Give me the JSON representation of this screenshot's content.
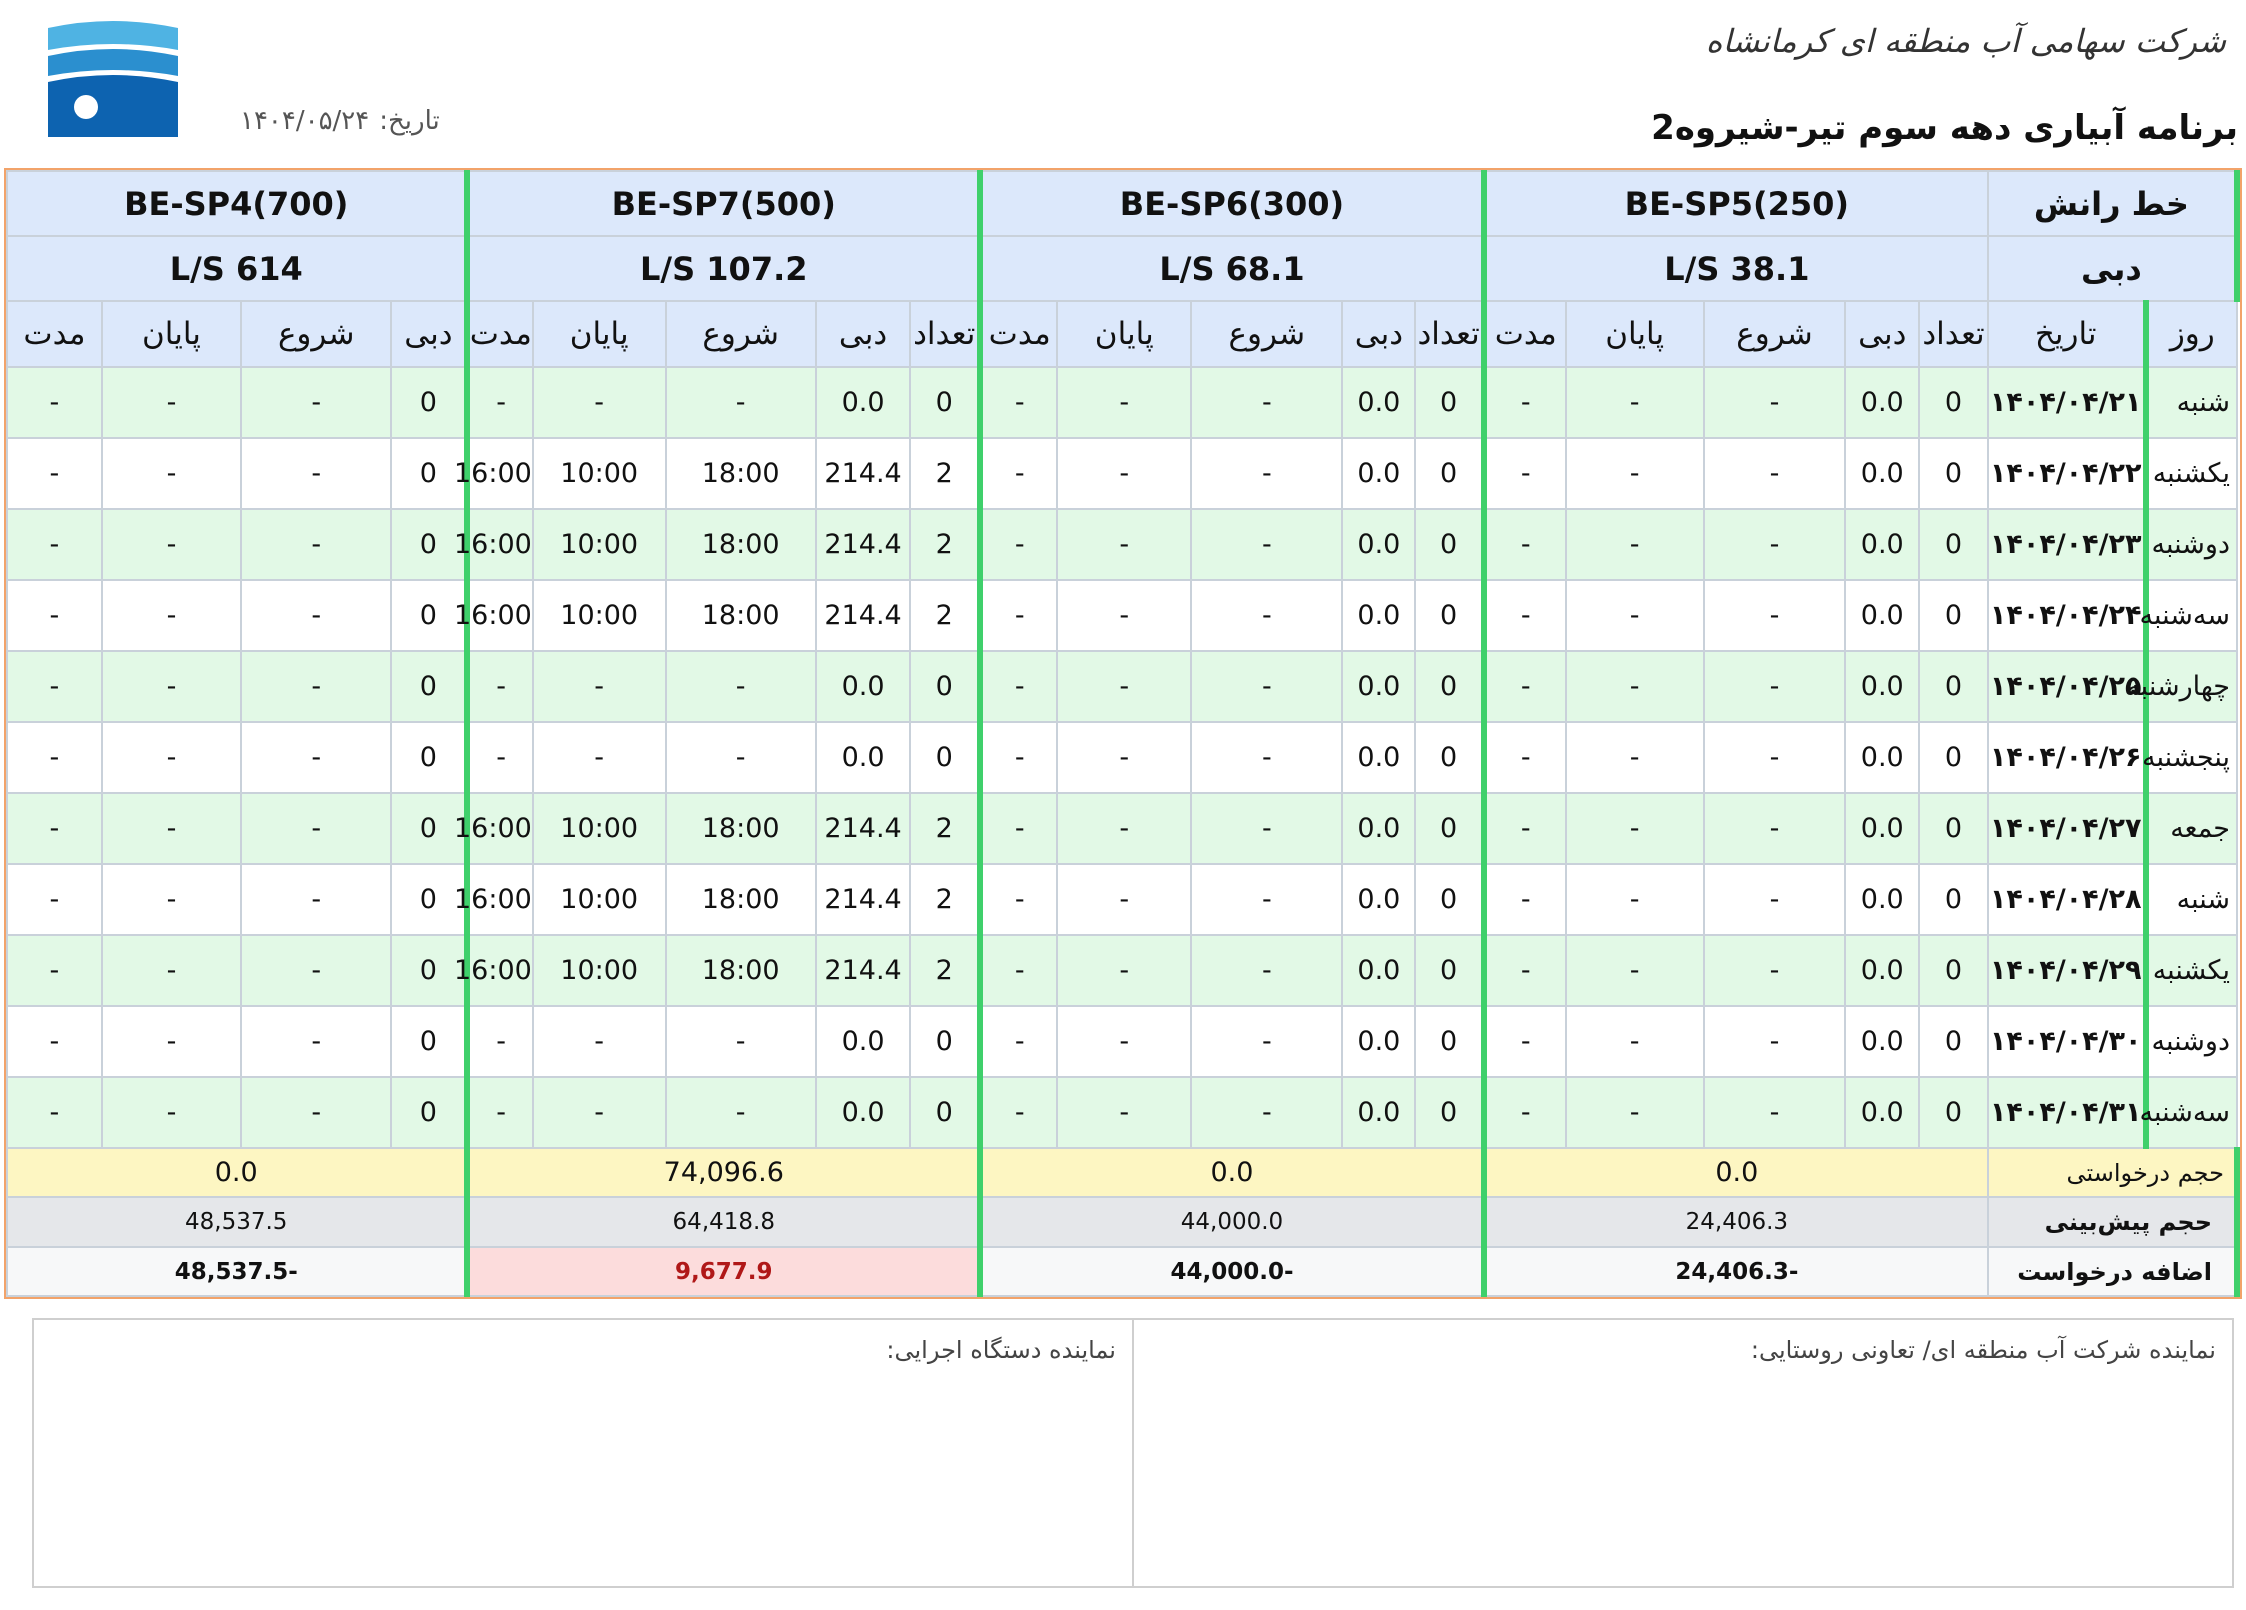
{
  "header": {
    "company": "شرکت سهامی آب منطقه ای کرمانشاه",
    "title": "برنامه آبیاری دهه سوم تیر-شیروه2",
    "date_label": "تاریخ:",
    "date_value": "۱۴۰۴/۰۵/۲۴"
  },
  "colors": {
    "header_bg": "#dce8fb",
    "row_green": "#e2f9e6",
    "separator": "#3fd06b",
    "requested_bg": "#fdf6c2",
    "forecast_bg": "#e5e7ea",
    "excess_positive": "#b01818"
  },
  "labels": {
    "line": "خط رانش",
    "flow": "دبی",
    "day": "روز",
    "date": "تاریخ",
    "count": "تعداد",
    "flow_col": "دبی",
    "start": "شروع",
    "end": "پایان",
    "duration": "مدت",
    "requested": "حجم درخواستی",
    "forecast": "حجم پیش‌بینی",
    "excess": "اضافه درخواست"
  },
  "stations": [
    {
      "name": "BE-SP5(250)",
      "flow": "38.1 L/S",
      "requested": "0.0",
      "forecast": "24,406.3",
      "excess": "-24,406.3"
    },
    {
      "name": "BE-SP6(300)",
      "flow": "68.1 L/S",
      "requested": "0.0",
      "forecast": "44,000.0",
      "excess": "-44,000.0"
    },
    {
      "name": "BE-SP7(500)",
      "flow": "107.2 L/S",
      "requested": "74,096.6",
      "forecast": "64,418.8",
      "excess": "9,677.9"
    },
    {
      "name": "BE-SP4(700)",
      "flow": "614 L/S",
      "requested": "0.0",
      "forecast": "48,537.5",
      "excess": "-48,537.5"
    }
  ],
  "rows": [
    {
      "day": "شنبه",
      "date": "۱۴۰۴/۰۴/۲۱",
      "s": [
        [
          "0",
          "0.0",
          "-",
          "-",
          "-"
        ],
        [
          "0",
          "0.0",
          "-",
          "-",
          "-"
        ],
        [
          "0",
          "0.0",
          "-",
          "-",
          "-"
        ],
        [
          "0",
          "-",
          "-",
          "-"
        ]
      ]
    },
    {
      "day": "یکشنبه",
      "date": "۱۴۰۴/۰۴/۲۲",
      "s": [
        [
          "0",
          "0.0",
          "-",
          "-",
          "-"
        ],
        [
          "0",
          "0.0",
          "-",
          "-",
          "-"
        ],
        [
          "2",
          "214.4",
          "18:00",
          "10:00",
          "16:00"
        ],
        [
          "0",
          "-",
          "-",
          "-"
        ]
      ]
    },
    {
      "day": "دوشنبه",
      "date": "۱۴۰۴/۰۴/۲۳",
      "s": [
        [
          "0",
          "0.0",
          "-",
          "-",
          "-"
        ],
        [
          "0",
          "0.0",
          "-",
          "-",
          "-"
        ],
        [
          "2",
          "214.4",
          "18:00",
          "10:00",
          "16:00"
        ],
        [
          "0",
          "-",
          "-",
          "-"
        ]
      ]
    },
    {
      "day": "سه‌شنبه",
      "date": "۱۴۰۴/۰۴/۲۴",
      "s": [
        [
          "0",
          "0.0",
          "-",
          "-",
          "-"
        ],
        [
          "0",
          "0.0",
          "-",
          "-",
          "-"
        ],
        [
          "2",
          "214.4",
          "18:00",
          "10:00",
          "16:00"
        ],
        [
          "0",
          "-",
          "-",
          "-"
        ]
      ]
    },
    {
      "day": "چهارشنبه",
      "date": "۱۴۰۴/۰۴/۲۵",
      "s": [
        [
          "0",
          "0.0",
          "-",
          "-",
          "-"
        ],
        [
          "0",
          "0.0",
          "-",
          "-",
          "-"
        ],
        [
          "0",
          "0.0",
          "-",
          "-",
          "-"
        ],
        [
          "0",
          "-",
          "-",
          "-"
        ]
      ]
    },
    {
      "day": "پنجشنبه",
      "date": "۱۴۰۴/۰۴/۲۶",
      "s": [
        [
          "0",
          "0.0",
          "-",
          "-",
          "-"
        ],
        [
          "0",
          "0.0",
          "-",
          "-",
          "-"
        ],
        [
          "0",
          "0.0",
          "-",
          "-",
          "-"
        ],
        [
          "0",
          "-",
          "-",
          "-"
        ]
      ]
    },
    {
      "day": "جمعه",
      "date": "۱۴۰۴/۰۴/۲۷",
      "s": [
        [
          "0",
          "0.0",
          "-",
          "-",
          "-"
        ],
        [
          "0",
          "0.0",
          "-",
          "-",
          "-"
        ],
        [
          "2",
          "214.4",
          "18:00",
          "10:00",
          "16:00"
        ],
        [
          "0",
          "-",
          "-",
          "-"
        ]
      ]
    },
    {
      "day": "شنبه",
      "date": "۱۴۰۴/۰۴/۲۸",
      "s": [
        [
          "0",
          "0.0",
          "-",
          "-",
          "-"
        ],
        [
          "0",
          "0.0",
          "-",
          "-",
          "-"
        ],
        [
          "2",
          "214.4",
          "18:00",
          "10:00",
          "16:00"
        ],
        [
          "0",
          "-",
          "-",
          "-"
        ]
      ]
    },
    {
      "day": "یکشنبه",
      "date": "۱۴۰۴/۰۴/۲۹",
      "s": [
        [
          "0",
          "0.0",
          "-",
          "-",
          "-"
        ],
        [
          "0",
          "0.0",
          "-",
          "-",
          "-"
        ],
        [
          "2",
          "214.4",
          "18:00",
          "10:00",
          "16:00"
        ],
        [
          "0",
          "-",
          "-",
          "-"
        ]
      ]
    },
    {
      "day": "دوشنبه",
      "date": "۱۴۰۴/۰۴/۳۰",
      "s": [
        [
          "0",
          "0.0",
          "-",
          "-",
          "-"
        ],
        [
          "0",
          "0.0",
          "-",
          "-",
          "-"
        ],
        [
          "0",
          "0.0",
          "-",
          "-",
          "-"
        ],
        [
          "0",
          "-",
          "-",
          "-"
        ]
      ]
    },
    {
      "day": "سه‌شنبه",
      "date": "۱۴۰۴/۰۴/۳۱",
      "s": [
        [
          "0",
          "0.0",
          "-",
          "-",
          "-"
        ],
        [
          "0",
          "0.0",
          "-",
          "-",
          "-"
        ],
        [
          "0",
          "0.0",
          "-",
          "-",
          "-"
        ],
        [
          "0",
          "-",
          "-",
          "-"
        ]
      ]
    }
  ],
  "signatures": {
    "right": "نماینده شرکت آب منطقه ای/ تعاونی روستایی:",
    "left": "نماینده دستگاه اجرایی:"
  }
}
